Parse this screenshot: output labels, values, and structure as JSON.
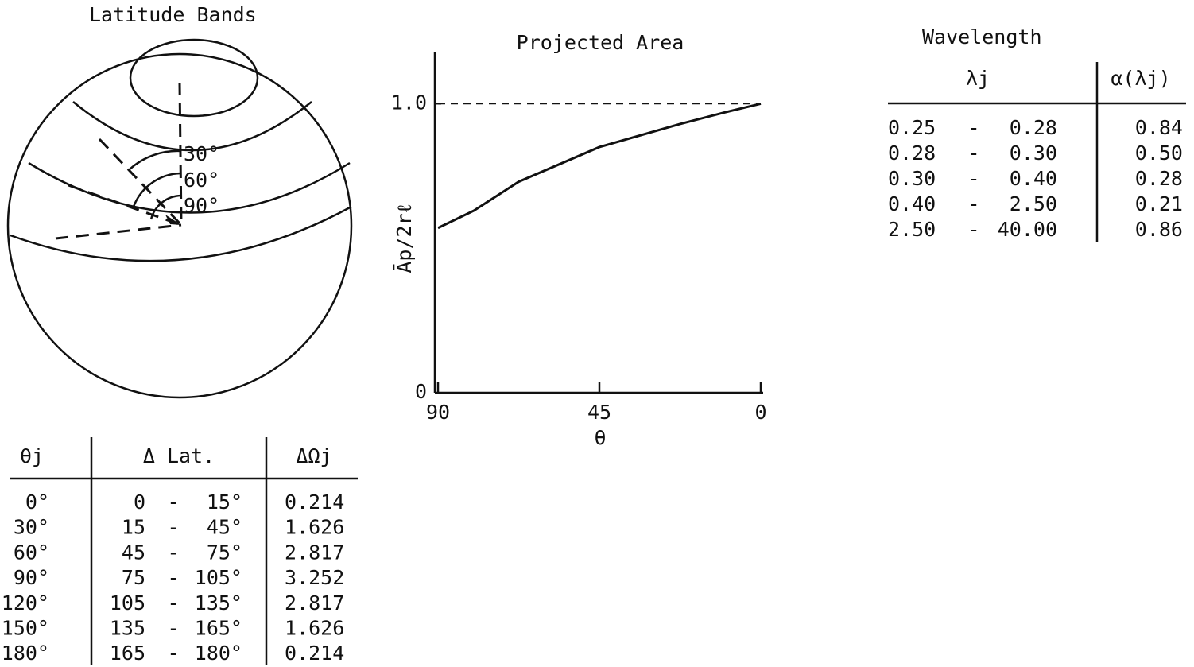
{
  "latitude_bands": {
    "title": "Latitude Bands",
    "angle_labels": [
      "30°",
      "60°",
      "90°"
    ]
  },
  "chart_data": {
    "type": "line",
    "title": "Projected Area",
    "x_label": "θ",
    "y_label": "Āp/2rℓ",
    "x": [
      90,
      80,
      67.5,
      45,
      22.5,
      10,
      0
    ],
    "series": [
      {
        "color": "#111111",
        "values": [
          0.57,
          0.63,
          0.73,
          0.85,
          0.93,
          0.97,
          1.0
        ]
      }
    ],
    "xlim": [
      90,
      0
    ],
    "xticks": [
      90,
      45,
      0
    ],
    "ylim": [
      0,
      1.18
    ],
    "yticks": [
      0,
      {
        "value": 1,
        "label": "1.0"
      }
    ],
    "reference_lines": [
      1
    ]
  },
  "latitude_table": {
    "headers": [
      "θj",
      "Δ Lat.",
      "ΔΩj"
    ],
    "rows": [
      [
        "0°",
        "0",
        "15°",
        "0.214"
      ],
      [
        "30°",
        "15",
        "45°",
        "1.626"
      ],
      [
        "60°",
        "45",
        "75°",
        "2.817"
      ],
      [
        "90°",
        "75",
        "105°",
        "3.252"
      ],
      [
        "120°",
        "105",
        "135°",
        "2.817"
      ],
      [
        "150°",
        "135",
        "165°",
        "1.626"
      ],
      [
        "180°",
        "165",
        "180°",
        "0.214"
      ]
    ]
  },
  "wavelength_table": {
    "title": "Wavelength",
    "headers": [
      "λj",
      "α(λj)"
    ],
    "rows": [
      [
        "0.25",
        "0.28",
        "0.84"
      ],
      [
        "0.28",
        "0.30",
        "0.50"
      ],
      [
        "0.30",
        "0.40",
        "0.28"
      ],
      [
        "0.40",
        "2.50",
        "0.21"
      ],
      [
        "2.50",
        "40.00",
        "0.86"
      ]
    ]
  }
}
